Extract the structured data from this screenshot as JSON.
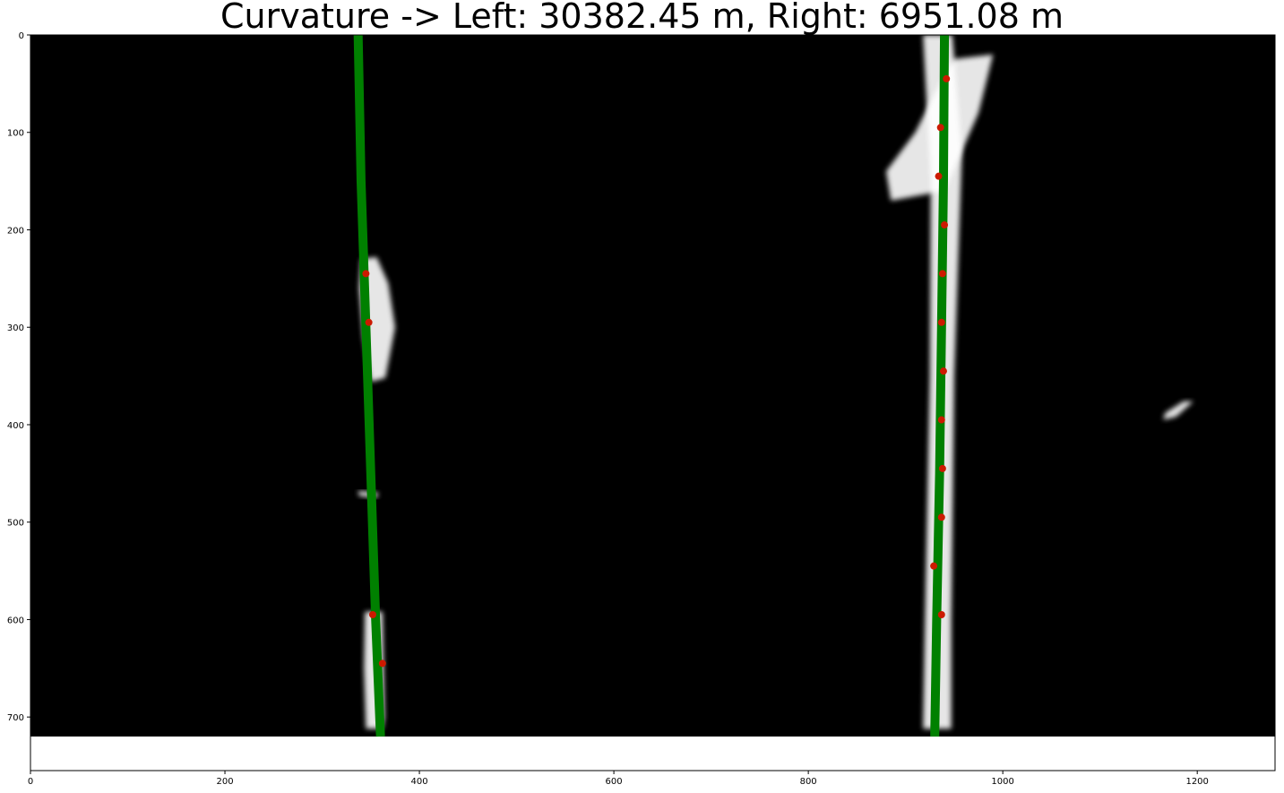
{
  "chart_data": {
    "type": "image-with-lines",
    "title": "Curvature -> Left: 30382.45 m, Right: 6951.08 m",
    "xlim": [
      0,
      1280
    ],
    "ylim": [
      755,
      0
    ],
    "image_extent": {
      "width": 1280,
      "height": 720
    },
    "xticks": [
      0,
      200,
      400,
      600,
      800,
      1000,
      1200
    ],
    "yticks": [
      0,
      100,
      200,
      300,
      400,
      500,
      600,
      700
    ],
    "colors": {
      "background": "#000000",
      "lane_fit": "#008000",
      "window_points": "#cc1a00",
      "lane_pixels": "#ffffff"
    },
    "fitted_lines": [
      {
        "x": [
          337,
          340,
          345,
          350,
          355,
          360
        ],
        "y": [
          0,
          150,
          300,
          450,
          600,
          720
        ]
      },
      {
        "x": [
          940,
          939,
          937,
          935,
          932,
          930
        ],
        "y": [
          0,
          150,
          300,
          450,
          600,
          720
        ]
      }
    ],
    "points": [
      {
        "x": 345,
        "y": 245
      },
      {
        "x": 348,
        "y": 295
      },
      {
        "x": 352,
        "y": 595
      },
      {
        "x": 362,
        "y": 645
      },
      {
        "x": 942,
        "y": 45
      },
      {
        "x": 936,
        "y": 95
      },
      {
        "x": 934,
        "y": 145
      },
      {
        "x": 940,
        "y": 195
      },
      {
        "x": 938,
        "y": 245
      },
      {
        "x": 937,
        "y": 295
      },
      {
        "x": 939,
        "y": 345
      },
      {
        "x": 937,
        "y": 395
      },
      {
        "x": 938,
        "y": 445
      },
      {
        "x": 937,
        "y": 495
      },
      {
        "x": 929,
        "y": 545
      },
      {
        "x": 937,
        "y": 595
      }
    ],
    "lane_pixel_regions": [
      {
        "shape": "polygon",
        "pts": [
          [
            340,
            230
          ],
          [
            356,
            228
          ],
          [
            368,
            255
          ],
          [
            375,
            300
          ],
          [
            365,
            352
          ],
          [
            350,
            356
          ],
          [
            342,
            310
          ],
          [
            338,
            260
          ]
        ]
      },
      {
        "shape": "polygon",
        "pts": [
          [
            344,
            592
          ],
          [
            362,
            592
          ],
          [
            364,
            700
          ],
          [
            362,
            712
          ],
          [
            345,
            712
          ],
          [
            343,
            650
          ]
        ]
      },
      {
        "shape": "polygon",
        "pts": [
          [
            337,
            468
          ],
          [
            358,
            470
          ],
          [
            356,
            475
          ],
          [
            338,
            473
          ]
        ]
      },
      {
        "shape": "polygon",
        "pts": [
          [
            918,
            0
          ],
          [
            948,
            0
          ],
          [
            958,
            120
          ],
          [
            950,
            350
          ],
          [
            947,
            600
          ],
          [
            947,
            712
          ],
          [
            918,
            712
          ],
          [
            920,
            600
          ],
          [
            925,
            350
          ],
          [
            926,
            150
          ]
        ]
      },
      {
        "shape": "polygon",
        "pts": [
          [
            948,
            25
          ],
          [
            990,
            20
          ],
          [
            975,
            80
          ],
          [
            940,
            160
          ],
          [
            885,
            170
          ],
          [
            880,
            140
          ],
          [
            910,
            100
          ]
        ]
      },
      {
        "shape": "polygon",
        "pts": [
          [
            1165,
            395
          ],
          [
            1178,
            392
          ],
          [
            1196,
            376
          ],
          [
            1186,
            376
          ],
          [
            1167,
            388
          ]
        ]
      }
    ]
  }
}
